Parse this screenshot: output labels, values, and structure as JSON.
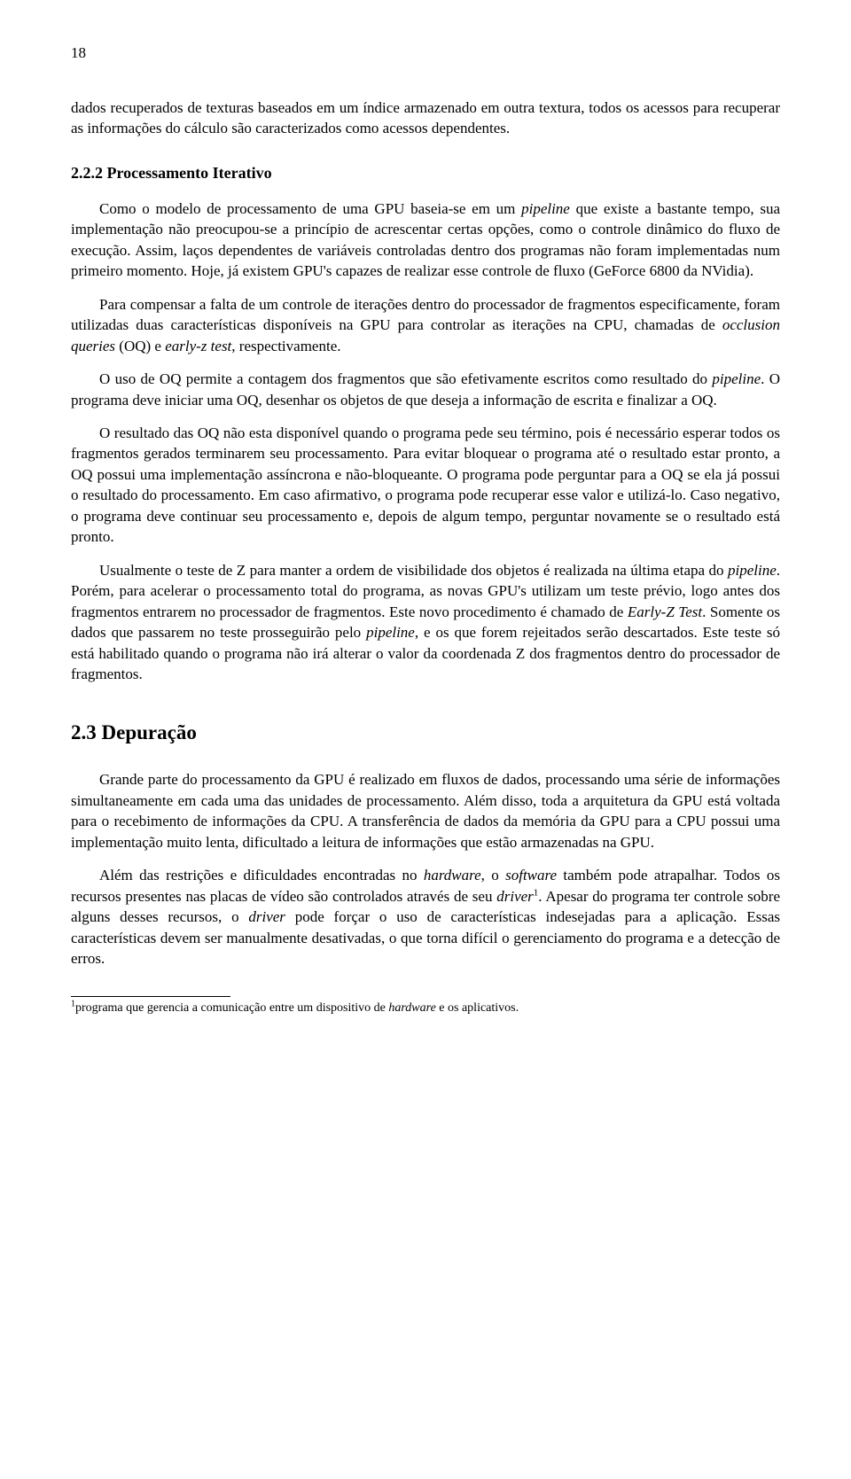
{
  "page": {
    "number": "18",
    "font_body_pt": 17,
    "font_section_pt": 18,
    "font_bigsection_pt": 23,
    "font_footnote_pt": 14,
    "text_color": "#000000",
    "background_color": "#ffffff"
  },
  "p1": "dados recuperados de texturas baseados em um índice armazenado em outra textura, todos os acessos para recuperar as informações do cálculo são caracterizados como acessos dependentes.",
  "sec222": "2.2.2   Processamento Iterativo",
  "p2a": "Como o modelo de processamento de uma GPU baseia-se em um ",
  "p2b": "pipeline",
  "p2c": " que existe a bastante tempo, sua implementação não preocupou-se a princípio de acrescentar certas opções, como o controle dinâmico do fluxo de execução. Assim, laços dependentes de variáveis controladas dentro dos programas não foram implementadas num primeiro momento. Hoje, já existem GPU's capazes de realizar esse controle de fluxo (GeForce 6800 da NVidia).",
  "p3a": "Para compensar a falta de um controle de iterações dentro do processador de fragmentos especificamente, foram utilizadas duas características disponíveis na GPU para controlar as iterações na CPU, chamadas de ",
  "p3b": "occlusion queries",
  "p3c": " (OQ) e ",
  "p3d": "early-z test",
  "p3e": ", respectivamente.",
  "p4a": "O uso de OQ permite a contagem dos fragmentos que são efetivamente escritos como resultado do ",
  "p4b": "pipeline",
  "p4c": ". O programa deve iniciar uma OQ, desenhar os objetos de que deseja a informação de escrita e finalizar a OQ.",
  "p5": "O resultado das OQ não esta disponível quando o programa pede seu término, pois é necessário esperar todos os fragmentos gerados terminarem seu processamento. Para evitar bloquear o programa até o resultado estar pronto, a OQ possui uma implementação assíncrona e não-bloqueante. O programa pode perguntar para a OQ se ela já possui o resultado do processamento. Em caso afirmativo, o programa pode recuperar esse valor e utilizá-lo. Caso negativo, o programa deve continuar seu processamento e, depois de algum tempo, perguntar novamente se o resultado está pronto.",
  "p6a": "Usualmente o teste de Z para manter a ordem de visibilidade dos objetos é realizada na última etapa do ",
  "p6b": "pipeline",
  "p6c": ". Porém, para acelerar o processamento total do programa, as novas GPU's utilizam um teste prévio, logo antes dos fragmentos entrarem no processador de fragmentos. Este novo procedimento é chamado de ",
  "p6d": "Early-Z Test",
  "p6e": ". Somente os dados que passarem no teste prosseguirão pelo ",
  "p6f": "pipeline",
  "p6g": ", e os que forem rejeitados serão descartados. Este teste só está habilitado quando o programa não irá alterar o valor da coordenada Z dos fragmentos dentro do processador de fragmentos.",
  "sec23": "2.3   Depuração",
  "p7": "Grande parte do processamento da GPU é realizado em fluxos de dados, processando uma série de informações simultaneamente em cada uma das unidades de processamento. Além disso, toda a arquitetura da GPU está voltada para o recebimento de informações da CPU. A transferência de dados da memória da GPU para a CPU possui uma implementação muito lenta, dificultado a leitura de informações que estão armazenadas na GPU.",
  "p8a": "Além das restrições e dificuldades encontradas no ",
  "p8b": "hardware",
  "p8c": ", o ",
  "p8d": "software",
  "p8e": " também pode atrapalhar. Todos os recursos presentes nas placas de vídeo são controlados através de seu ",
  "p8f": "driver",
  "p8g": ". Apesar do programa ter controle sobre alguns desses recursos, o ",
  "p8h": "driver",
  "p8i": " pode forçar o uso de características indesejadas para a aplicação. Essas características devem ser manualmente desativadas, o que torna difícil o gerenciamento do programa e a detecção de erros.",
  "fn_mark": "1",
  "fn_text_a": "programa que gerencia a comunicação entre um dispositivo de ",
  "fn_text_b": "hardware",
  "fn_text_c": " e os aplicativos."
}
